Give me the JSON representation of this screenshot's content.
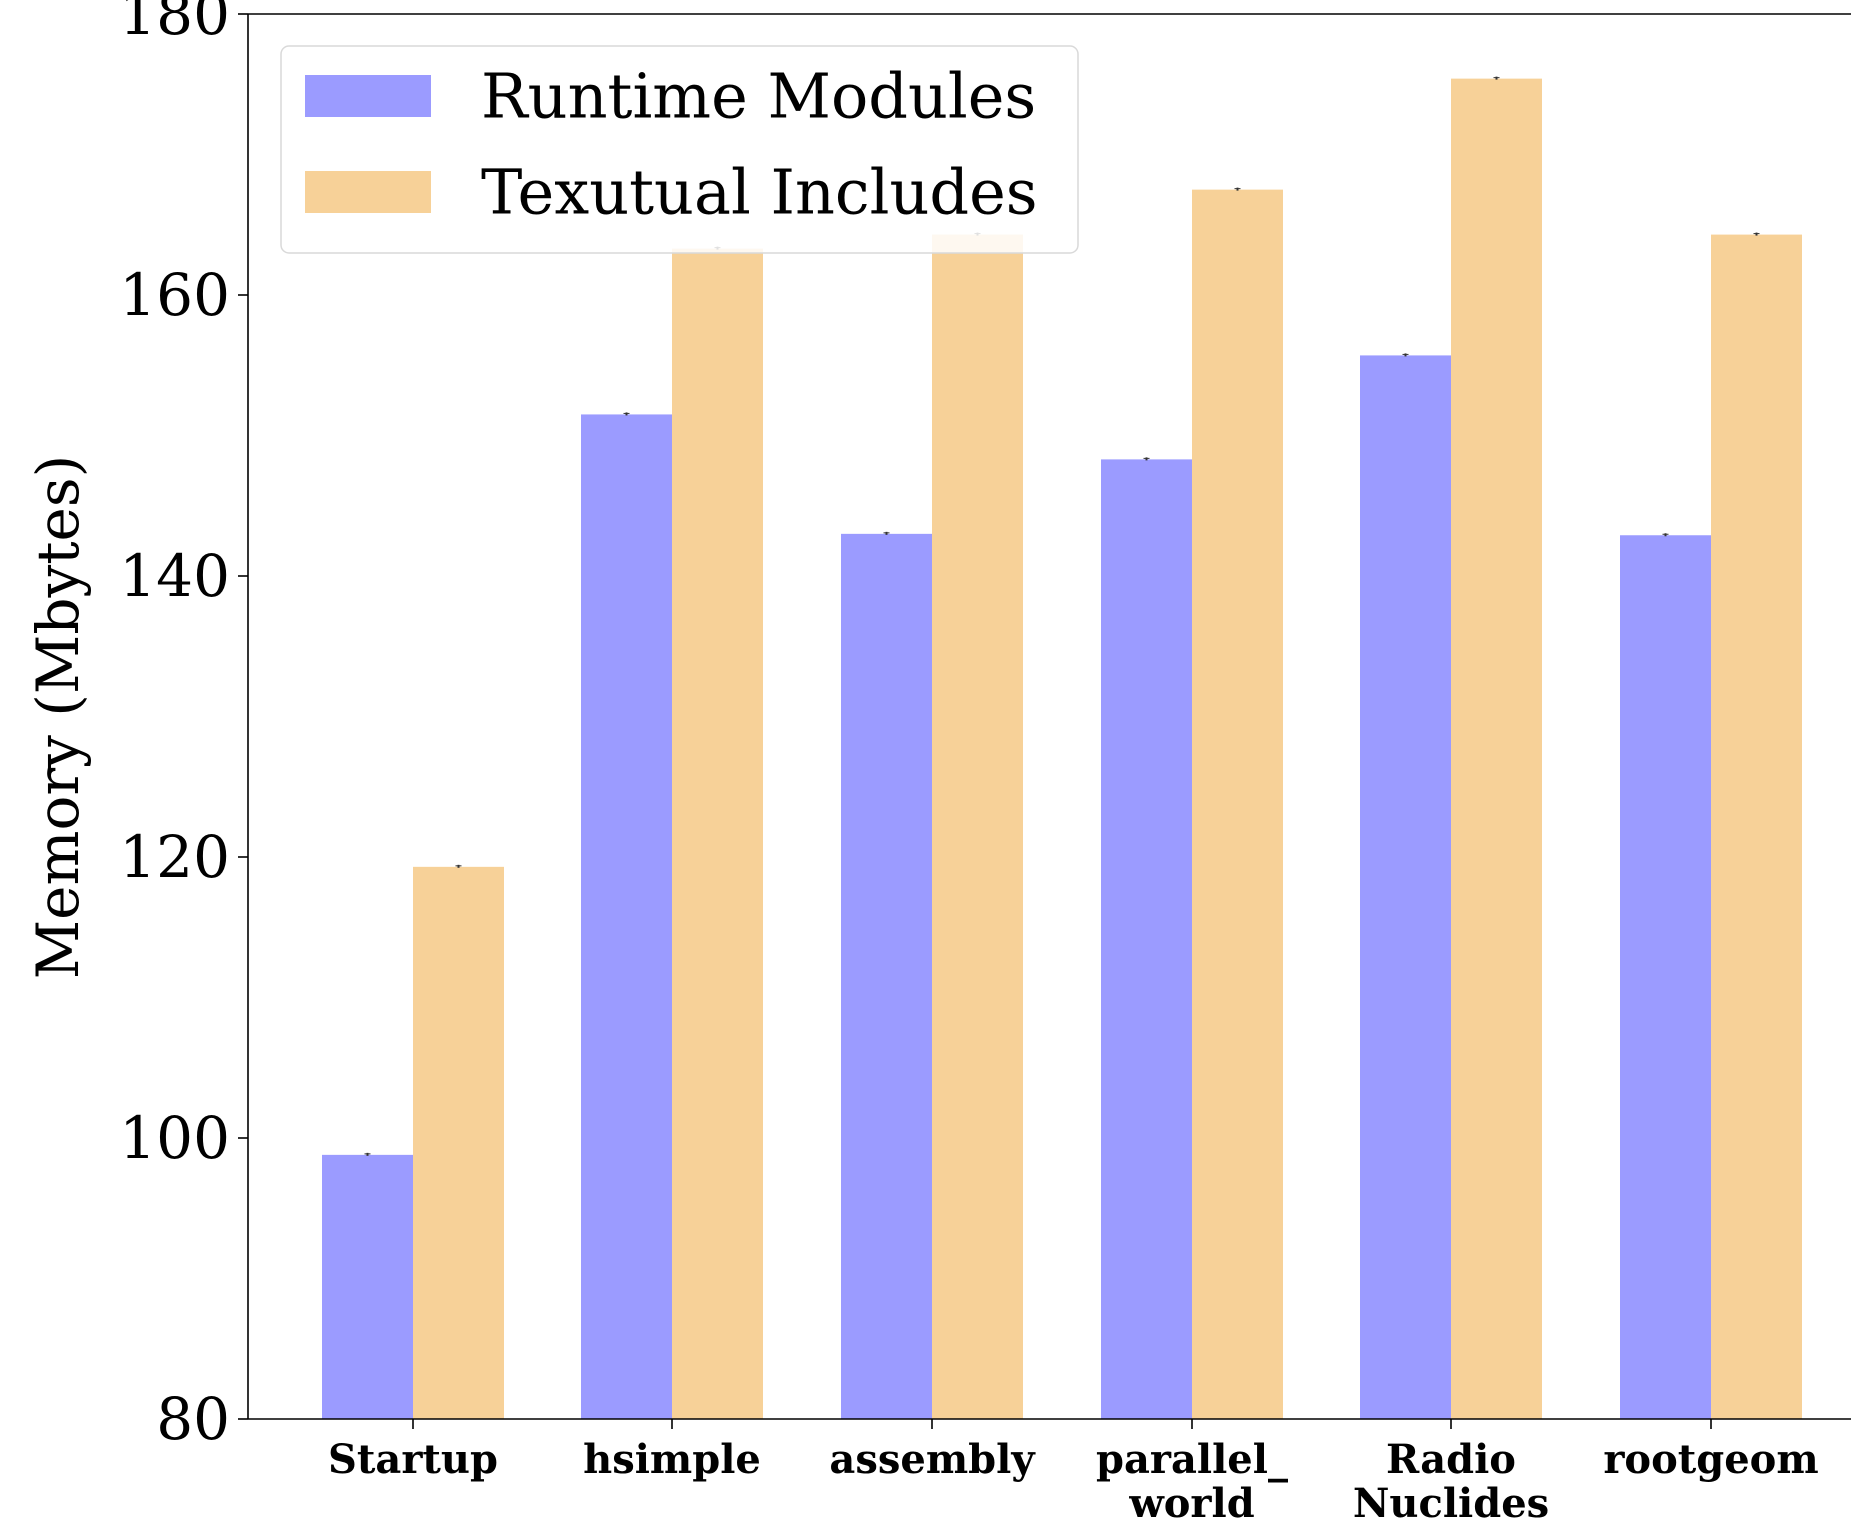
{
  "chart_data": {
    "type": "bar",
    "title": "",
    "xlabel": "",
    "ylabel": "Memory (Mbytes)",
    "ylim": [
      80,
      180
    ],
    "yticks": [
      80,
      100,
      120,
      140,
      160,
      180
    ],
    "categories": [
      [
        "Startup"
      ],
      [
        "hsimple"
      ],
      [
        "assembly"
      ],
      [
        "parallel_",
        "world"
      ],
      [
        "Radio",
        "Nuclides"
      ],
      [
        "rootgeom"
      ]
    ],
    "series": [
      {
        "name": "Runtime Modules",
        "color": "#9b9bff",
        "values": [
          98.8,
          151.5,
          143.0,
          148.3,
          155.7,
          142.9
        ]
      },
      {
        "name": "Texutual Includes",
        "color": "#f7d198",
        "values": [
          119.3,
          163.3,
          164.3,
          167.5,
          175.4,
          164.3
        ]
      }
    ],
    "error_bar_color": "#333333",
    "legend_position": "upper-left",
    "grid": false
  }
}
